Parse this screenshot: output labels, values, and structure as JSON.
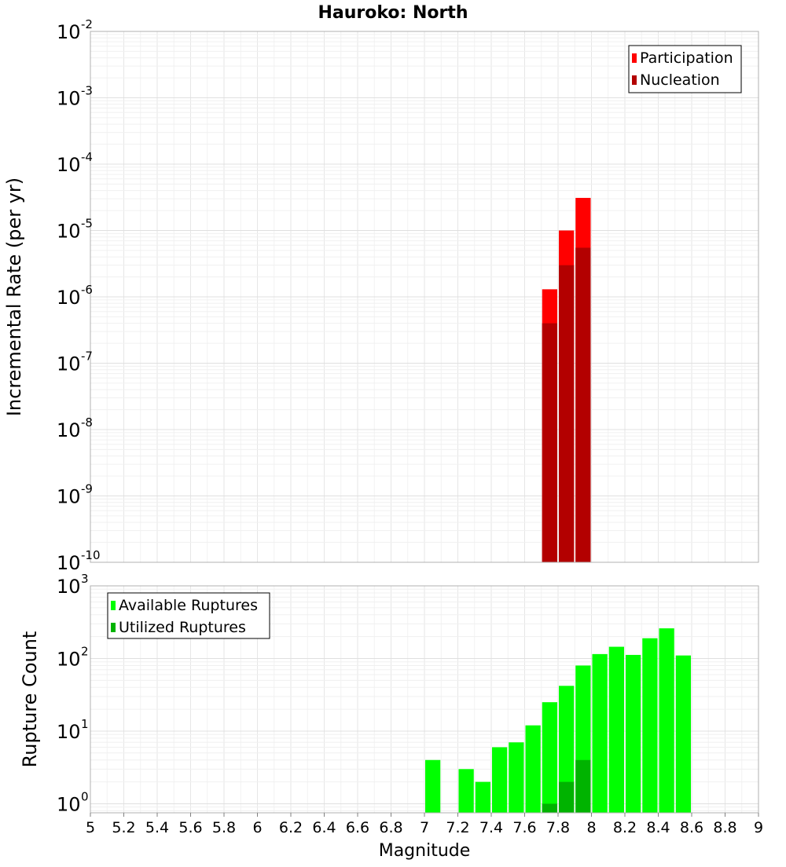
{
  "title": "Hauroko: North",
  "xlabel": "Magnitude",
  "xticks": [
    "5",
    "5.2",
    "5.4",
    "5.6",
    "5.8",
    "6",
    "6.2",
    "6.4",
    "6.6",
    "6.8",
    "7",
    "7.2",
    "7.4",
    "7.6",
    "7.8",
    "8",
    "8.2",
    "8.4",
    "8.6",
    "8.8",
    "9"
  ],
  "chart_data": [
    {
      "type": "bar",
      "ylabel": "Incremental Rate (per yr)",
      "yscale": "log",
      "xlim": [
        5,
        9
      ],
      "ylim": [
        1e-10,
        0.01
      ],
      "y_tick_exponents": [
        -10,
        -9,
        -8,
        -7,
        -6,
        -5,
        -4,
        -3,
        -2
      ],
      "grid": true,
      "legend_position": "top-right",
      "bin_width": 0.1,
      "series": [
        {
          "name": "Participation",
          "color": "#ff0000",
          "x": [
            7.75,
            7.85,
            7.95
          ],
          "values": [
            1.3e-06,
            1e-05,
            3.1e-05
          ]
        },
        {
          "name": "Nucleation",
          "color": "#b30000",
          "x": [
            7.75,
            7.85,
            7.95
          ],
          "values": [
            4e-07,
            3e-06,
            5.5e-06
          ]
        }
      ]
    },
    {
      "type": "bar",
      "ylabel": "Rupture Count",
      "yscale": "log",
      "xlim": [
        5,
        9
      ],
      "ylim": [
        0.75,
        1000
      ],
      "y_tick_exponents": [
        0,
        1,
        2,
        3
      ],
      "grid": true,
      "legend_position": "top-left",
      "bin_width": 0.1,
      "series": [
        {
          "name": "Available Ruptures",
          "color": "#00ff00",
          "x": [
            7.05,
            7.25,
            7.35,
            7.45,
            7.55,
            7.65,
            7.75,
            7.85,
            7.95,
            8.05,
            8.15,
            8.25,
            8.35,
            8.45,
            8.55
          ],
          "values": [
            4,
            3,
            2,
            6,
            7,
            12,
            25,
            42,
            80,
            115,
            145,
            112,
            190,
            260,
            110
          ]
        },
        {
          "name": "Utilized Ruptures",
          "color": "#00b300",
          "x": [
            7.75,
            7.85,
            7.95
          ],
          "values": [
            1,
            2,
            4
          ]
        }
      ]
    }
  ]
}
